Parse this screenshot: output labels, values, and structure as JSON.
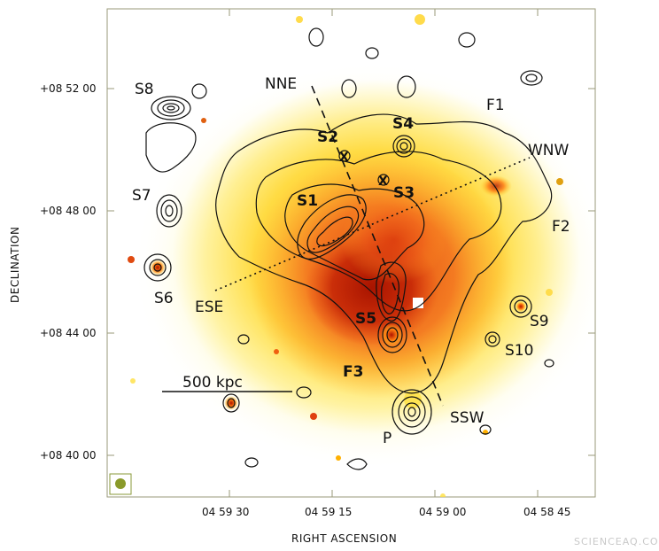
{
  "axes": {
    "xlabel": "RIGHT ASCENSION",
    "ylabel": "DECLINATION",
    "x_ticks": [
      "04 59 30",
      "04 59 15",
      "04 59 00",
      "04 58 45"
    ],
    "y_ticks": [
      "+08 52 00",
      "+08 48 00",
      "+08 44 00",
      "+08 40 00"
    ]
  },
  "labels": {
    "S1": "S1",
    "S2": "S2",
    "S3": "S3",
    "S4": "S4",
    "S5": "S5",
    "S6": "S6",
    "S7": "S7",
    "S8": "S8",
    "S9": "S9",
    "S10": "S10",
    "F1": "F1",
    "F2": "F2",
    "F3": "F3",
    "P": "P",
    "NNE": "NNE",
    "WNW": "WNW",
    "ESE": "ESE",
    "SSW": "SSW",
    "X": "X"
  },
  "scale_bar": "500 kpc",
  "watermark": "SCIENCEAQ.COM",
  "colors": {
    "core": "#b81e00",
    "mid": "#f05a0a",
    "outer": "#ffd21e",
    "halo": "#fff27a",
    "contour": "#111111"
  }
}
